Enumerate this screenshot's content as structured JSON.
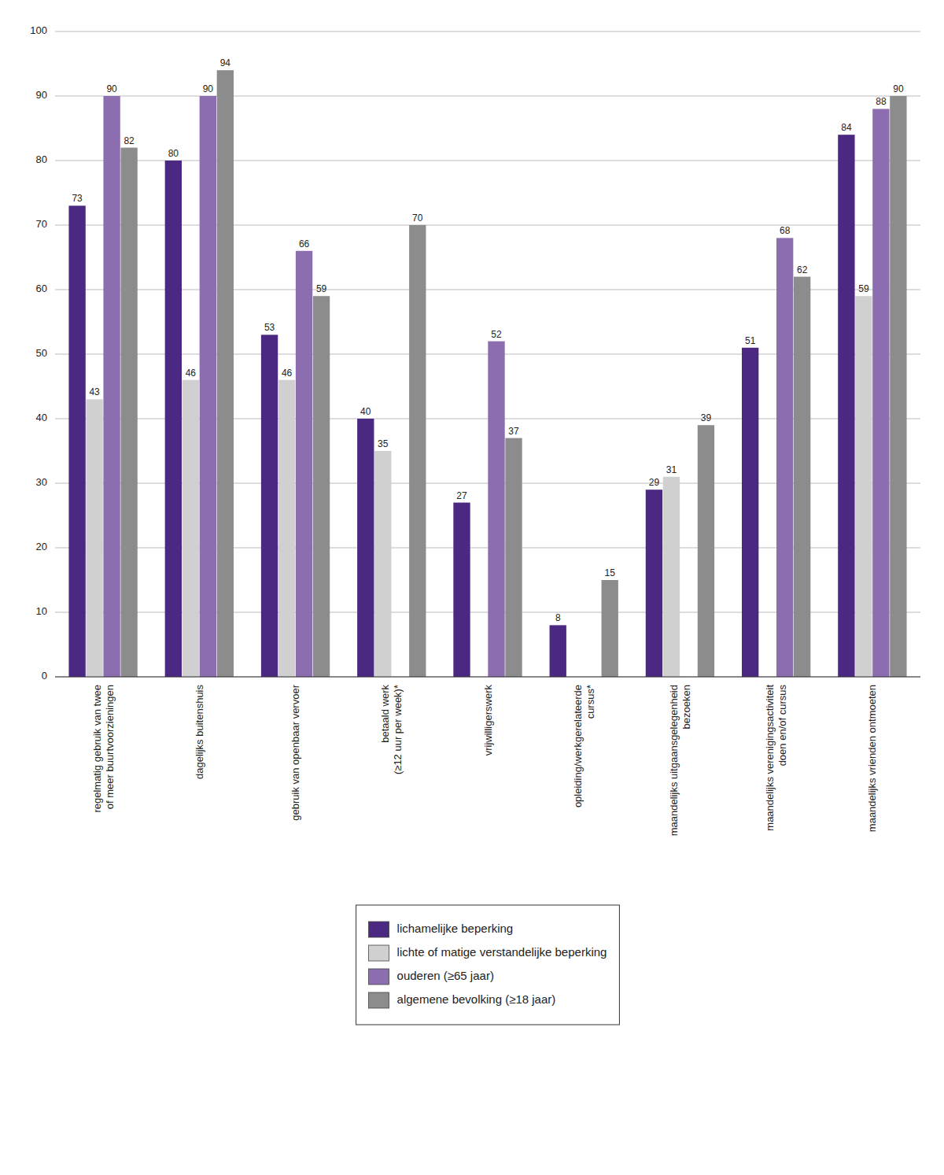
{
  "chart_data": {
    "type": "bar",
    "categories": [
      "regelmatig gebruik van twee\nof meer buurtvoorzieningen",
      "dagelijks buitenshuis",
      "gebruik van openbaar vervoer",
      "betaald werk\n(≥12 uur per week)*",
      "vrijwilligerswerk",
      "opleiding/werkgerelateerde\ncursus*",
      "maandelijks uitgaansgelegenheid\nbezoeken",
      "maandelijks verenigingsactiviteit\ndoen en/of cursus",
      "maandelijks vrienden ontmoeten"
    ],
    "series": [
      {
        "name": "lichamelijke beperking",
        "color": "#4b2882",
        "values": [
          73,
          80,
          53,
          40,
          27,
          8,
          29,
          51,
          84
        ],
        "value_labels": [
          "73",
          "80",
          "53",
          "40",
          "27",
          "8",
          "29",
          "51",
          "84"
        ]
      },
      {
        "name": "lichte of matige verstandelijke beperking",
        "color": "#d0d0d0",
        "values": [
          43,
          46,
          46,
          35,
          0,
          0,
          31,
          0,
          59
        ],
        "value_labels": [
          "43",
          "46",
          "46",
          "35",
          null,
          null,
          "31",
          null,
          "59"
        ]
      },
      {
        "name": "ouderen (≥65 jaar)",
        "color": "#8b6db0",
        "values": [
          90,
          90,
          66,
          0,
          52,
          0,
          0,
          68,
          88
        ],
        "value_labels": [
          "90",
          "90",
          "66",
          null,
          "52",
          null,
          null,
          "68",
          "88"
        ]
      },
      {
        "name": "algemene bevolking (≥18 jaar)",
        "color": "#8c8c8c",
        "values": [
          82,
          94,
          59,
          70,
          37,
          15,
          39,
          62,
          90
        ],
        "value_labels": [
          "82",
          "94",
          "59",
          "70",
          "37",
          "15",
          "39",
          "62",
          "90"
        ]
      }
    ],
    "ylim": [
      0,
      100
    ],
    "yticks": [
      0,
      10,
      20,
      30,
      40,
      50,
      60,
      70,
      80,
      90,
      100
    ],
    "grid": true,
    "data_labels": true,
    "legend": "bottom"
  }
}
